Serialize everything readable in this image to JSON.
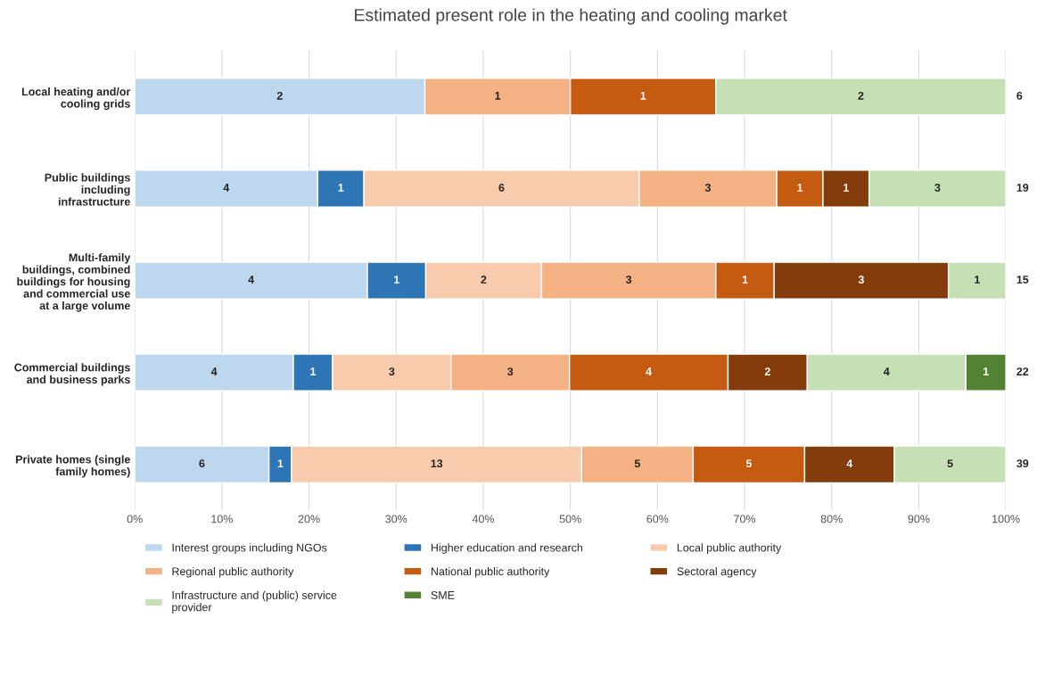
{
  "chart_data": {
    "type": "bar",
    "orientation": "horizontal",
    "stacked": true,
    "title": "Estimated present role in the heating and cooling market",
    "categories": [
      "Local heating and/or\ncooling grids",
      "Public buildings\nincluding\ninfrastructure",
      "Multi-family\nbuildings, combined\nbuildings for housing\nand commercial use\nat a large volume",
      "Commercial buildings\nand business parks",
      "Private homes (single\nfamily homes)"
    ],
    "series": [
      {
        "name": "Interest groups including NGOs",
        "color": "#bdd7ee",
        "values": [
          33.3,
          21.0,
          26.7,
          18.2,
          15.4
        ]
      },
      {
        "name": "Higher education and research",
        "color": "#2e75b6",
        "values": [
          null,
          5.3,
          6.7,
          4.5,
          2.6
        ]
      },
      {
        "name": "Local public authority",
        "color": "#f8cbad",
        "values": [
          null,
          31.6,
          13.3,
          13.6,
          33.3
        ]
      },
      {
        "name": "Regional public authority",
        "color": "#f4b183",
        "values": [
          16.7,
          15.8,
          20.0,
          13.6,
          12.8
        ]
      },
      {
        "name": "National public authority",
        "color": "#c55a11",
        "values": [
          16.7,
          5.3,
          6.7,
          18.2,
          12.8
        ]
      },
      {
        "name": "Sectoral agency",
        "color": "#843c0c",
        "values": [
          null,
          5.3,
          20.0,
          9.1,
          10.3
        ]
      },
      {
        "name": "Infrastructure and (public) service\nprovider",
        "color": "#c5e0b4",
        "values": [
          33.3,
          15.7,
          6.6,
          18.2,
          12.8
        ]
      },
      {
        "name": "SME",
        "color": "#548235",
        "values": [
          null,
          null,
          null,
          4.6,
          null
        ]
      }
    ],
    "annotations": [
      "2",
      "1",
      "1",
      "2",
      "6",
      "4",
      "1",
      "6",
      "3",
      "1",
      "1",
      "3",
      "19",
      "4",
      "1",
      "2",
      "3",
      "1",
      "3",
      "1",
      "15",
      "4",
      "1",
      "3",
      "3",
      "4",
      "2",
      "4",
      "1",
      "22",
      "6",
      "1",
      "13",
      "5",
      "5",
      "4",
      "5",
      "39"
    ],
    "xlim": [
      0,
      100
    ],
    "xticks": [
      {
        "value": 0,
        "label": "0%"
      },
      {
        "value": 10,
        "label": "10%"
      },
      {
        "value": 20,
        "label": "20%"
      },
      {
        "value": 30,
        "label": "30%"
      },
      {
        "value": 40,
        "label": "40%"
      },
      {
        "value": 50,
        "label": "50%"
      },
      {
        "value": 60,
        "label": "60%"
      },
      {
        "value": 70,
        "label": "70%"
      },
      {
        "value": 80,
        "label": "80%"
      },
      {
        "value": 90,
        "label": "90%"
      },
      {
        "value": 100,
        "label": "100%"
      }
    ],
    "grid": "x",
    "legend": "bottom"
  }
}
